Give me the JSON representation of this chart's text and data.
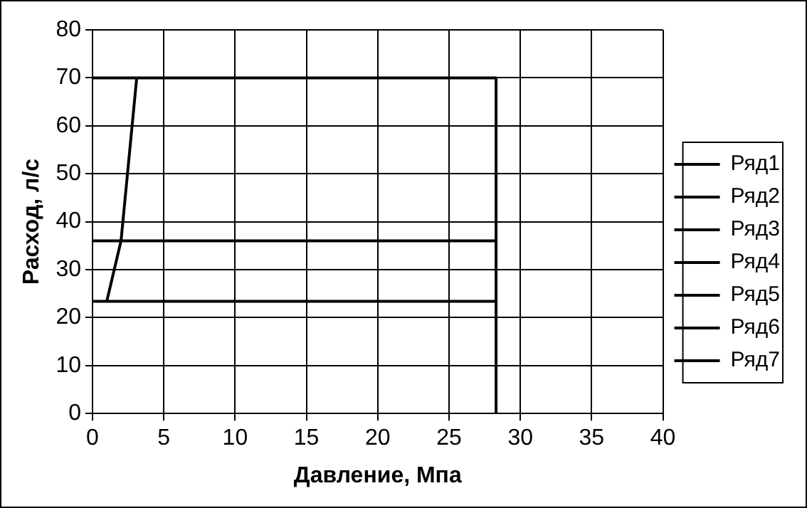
{
  "chart_data": {
    "type": "line",
    "xlabel": "Давление, Мпа",
    "ylabel": "Расход, л/с",
    "xlim": [
      0,
      40
    ],
    "xticks": [
      0,
      5,
      10,
      15,
      20,
      25,
      30,
      35,
      40
    ],
    "ylim": [
      0,
      80
    ],
    "yticks": [
      0,
      10,
      20,
      30,
      40,
      50,
      60,
      70,
      80
    ],
    "grid": true,
    "legend": "right",
    "marker": "none",
    "line_style": "solid",
    "series": [
      {
        "name": "Ряд1",
        "color": "#000000",
        "x": [
          0,
          28.3,
          28.3
        ],
        "values": [
          70,
          70,
          0
        ]
      },
      {
        "name": "Ряд2",
        "color": "#000000",
        "x": [
          0,
          28.3
        ],
        "values": [
          36,
          36
        ]
      },
      {
        "name": "Ряд3",
        "color": "#000000",
        "x": [
          1,
          2,
          3.1
        ],
        "values": [
          23.4,
          36,
          70
        ]
      },
      {
        "name": "Ряд4",
        "color": "#000000",
        "x": [
          null
        ],
        "values": [
          null
        ]
      },
      {
        "name": "Ряд5",
        "color": "#000000",
        "x": [
          null
        ],
        "values": [
          null
        ]
      },
      {
        "name": "Ряд6",
        "color": "#000000",
        "x": [
          null
        ],
        "values": [
          null
        ]
      },
      {
        "name": "Ряд7",
        "color": "#000000",
        "x": [
          0,
          28.3
        ],
        "values": [
          23.4,
          23.4
        ]
      }
    ]
  }
}
